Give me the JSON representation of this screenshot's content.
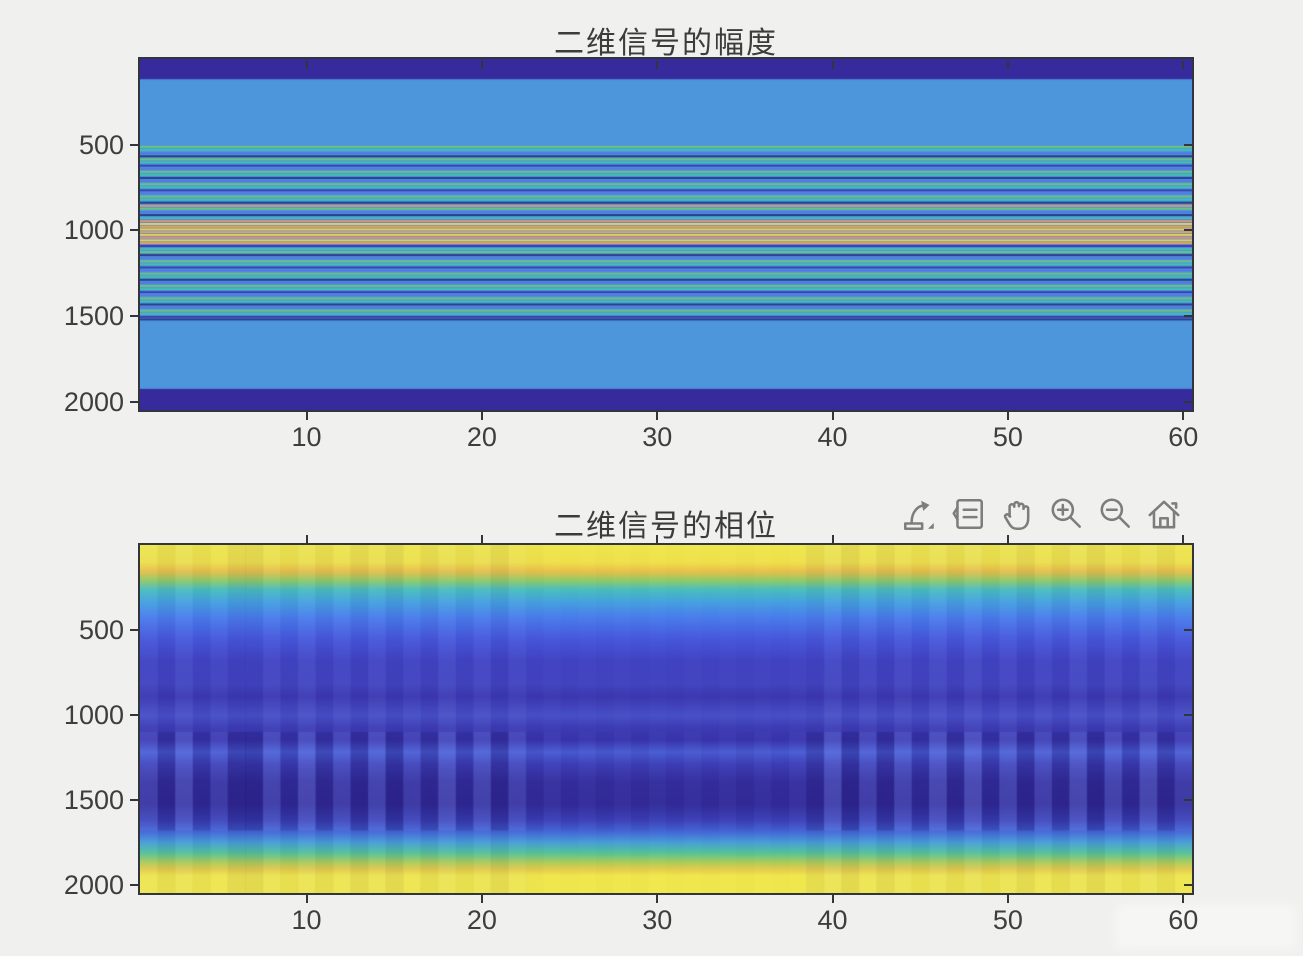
{
  "figure": {
    "background": "#F0F0EE",
    "axis_color": "#32353C",
    "tick_label_color": "#3E3E3E",
    "title_color": "#3C3C3C"
  },
  "toolbar": {
    "color": "#7D7D7D",
    "buttons": [
      {
        "name": "export",
        "icon": "export-icon"
      },
      {
        "name": "datatips",
        "icon": "datatips-icon"
      },
      {
        "name": "pan",
        "icon": "pan-icon"
      },
      {
        "name": "zoom-in",
        "icon": "zoom-in-icon"
      },
      {
        "name": "zoom-out",
        "icon": "zoom-out-icon"
      },
      {
        "name": "restore-view",
        "icon": "home-icon"
      }
    ]
  },
  "chart_data": [
    {
      "type": "heatmap",
      "subtype": "horizontal-bands",
      "title": "二维信号的幅度",
      "xlabel": "",
      "ylabel": "",
      "x_range": [
        1,
        60
      ],
      "y_range": [
        1,
        2048
      ],
      "x_ticks": [
        10,
        20,
        30,
        40,
        50,
        60
      ],
      "x_tick_labels": [
        "10",
        "20",
        "30",
        "40",
        "50",
        "60"
      ],
      "y_ticks": [
        500,
        1000,
        1500,
        2000
      ],
      "y_tick_labels": [
        "500",
        "1000",
        "1500",
        "2000"
      ],
      "colormap": "parula",
      "background_value_color": "#4D96DB",
      "bands": [
        [
          1,
          2048,
          "#4D96DB"
        ],
        [
          1,
          118,
          "#362A9D"
        ],
        [
          1926,
          123,
          "#362A9D"
        ],
        [
          930,
          162,
          "#5A7BE4"
        ],
        [
          508,
          11,
          "#6FC578"
        ],
        [
          526,
          11,
          "#41C0B3"
        ],
        [
          545,
          11,
          "#5577E8"
        ],
        [
          563,
          11,
          "#2A3584"
        ],
        [
          581,
          11,
          "#6FC578"
        ],
        [
          599,
          11,
          "#41C0B3"
        ],
        [
          618,
          11,
          "#3D35B0"
        ],
        [
          636,
          11,
          "#5577E8"
        ],
        [
          654,
          11,
          "#6FC578"
        ],
        [
          672,
          11,
          "#41C0B3"
        ],
        [
          690,
          11,
          "#2A3584"
        ],
        [
          708,
          11,
          "#5577E8"
        ],
        [
          726,
          11,
          "#6FC578"
        ],
        [
          744,
          11,
          "#41C0B3"
        ],
        [
          762,
          11,
          "#3D35B0"
        ],
        [
          780,
          11,
          "#5577E8"
        ],
        [
          798,
          11,
          "#6FC578"
        ],
        [
          816,
          11,
          "#41C0B3"
        ],
        [
          834,
          11,
          "#2A3584"
        ],
        [
          852,
          11,
          "#DE9A70"
        ],
        [
          870,
          11,
          "#6FC578"
        ],
        [
          888,
          11,
          "#5577E8"
        ],
        [
          906,
          11,
          "#2A3584"
        ],
        [
          924,
          11,
          "#41C0B3"
        ],
        [
          941,
          11,
          "#DE9A70"
        ],
        [
          958,
          11,
          "#EDDC4E"
        ],
        [
          974,
          11,
          "#E9AE4C"
        ],
        [
          990,
          11,
          "#EDDC4E"
        ],
        [
          1006,
          11,
          "#E9AE4C"
        ],
        [
          1022,
          11,
          "#EDDC4E"
        ],
        [
          1038,
          11,
          "#DE9A70"
        ],
        [
          1054,
          11,
          "#EDDC4E"
        ],
        [
          1070,
          11,
          "#E9AE4C"
        ],
        [
          1087,
          11,
          "#3D35B0"
        ],
        [
          1104,
          11,
          "#41C0B3"
        ],
        [
          1122,
          11,
          "#6FC578"
        ],
        [
          1140,
          11,
          "#2A3584"
        ],
        [
          1158,
          11,
          "#5577E8"
        ],
        [
          1176,
          11,
          "#6FC578"
        ],
        [
          1194,
          11,
          "#41C0B3"
        ],
        [
          1212,
          11,
          "#3D35B0"
        ],
        [
          1230,
          11,
          "#5577E8"
        ],
        [
          1248,
          11,
          "#6FC578"
        ],
        [
          1266,
          11,
          "#41C0B3"
        ],
        [
          1284,
          11,
          "#2A3584"
        ],
        [
          1302,
          11,
          "#5577E8"
        ],
        [
          1320,
          11,
          "#6FC578"
        ],
        [
          1338,
          11,
          "#41C0B3"
        ],
        [
          1356,
          11,
          "#3D35B0"
        ],
        [
          1374,
          11,
          "#5577E8"
        ],
        [
          1392,
          11,
          "#6FC578"
        ],
        [
          1410,
          11,
          "#41C0B3"
        ],
        [
          1428,
          11,
          "#2A3584"
        ],
        [
          1446,
          11,
          "#5577E8"
        ],
        [
          1464,
          11,
          "#6FC578"
        ],
        [
          1482,
          11,
          "#41C0B3"
        ],
        [
          1500,
          11,
          "#3D35B0"
        ],
        [
          1515,
          11,
          "#2A3584"
        ]
      ]
    },
    {
      "type": "heatmap",
      "subtype": "vertical-gradient",
      "title": "二维信号的相位",
      "xlabel": "",
      "ylabel": "",
      "x_range": [
        1,
        60
      ],
      "y_range": [
        1,
        2048
      ],
      "x_ticks": [
        10,
        20,
        30,
        40,
        50,
        60
      ],
      "x_tick_labels": [
        "10",
        "20",
        "30",
        "40",
        "50",
        "60"
      ],
      "y_ticks": [
        500,
        1000,
        1500,
        2000
      ],
      "y_tick_labels": [
        "500",
        "1000",
        "1500",
        "2000"
      ],
      "colormap": "parula",
      "n_columns": 60,
      "gradient_stops": [
        [
          0.0,
          "#F1E84D"
        ],
        [
          0.05,
          "#F0E24B"
        ],
        [
          0.075,
          "#ECC148"
        ],
        [
          0.1,
          "#98CC63"
        ],
        [
          0.128,
          "#4AC0BC"
        ],
        [
          0.163,
          "#45A3E0"
        ],
        [
          0.21,
          "#4A7CEC"
        ],
        [
          0.27,
          "#4758DC"
        ],
        [
          0.335,
          "#4143C2"
        ],
        [
          0.4,
          "#4244C0"
        ],
        [
          0.435,
          "#3C38B0"
        ],
        [
          0.49,
          "#4850C8"
        ],
        [
          0.525,
          "#3E3CB4"
        ],
        [
          0.56,
          "#3B36AE"
        ],
        [
          0.595,
          "#4A5DD4"
        ],
        [
          0.63,
          "#3F40B8"
        ],
        [
          0.68,
          "#362F9F"
        ],
        [
          0.745,
          "#342C9A"
        ],
        [
          0.79,
          "#3C40B6"
        ],
        [
          0.825,
          "#4568D8"
        ],
        [
          0.855,
          "#47A0D6"
        ],
        [
          0.885,
          "#55C498"
        ],
        [
          0.91,
          "#A8CD5C"
        ],
        [
          0.932,
          "#E6CD4A"
        ],
        [
          0.95,
          "#F1E84D"
        ],
        [
          1.0,
          "#F1E84D"
        ]
      ],
      "blotch_rows": [
        1100,
        1680
      ],
      "column_variation": [
        -0.5,
        0.6,
        -0.7,
        0.5,
        -0.4,
        0.7,
        0.8,
        -0.6,
        0.5,
        -0.7,
        0.6,
        -0.5,
        0.7,
        -0.6,
        0.8,
        -0.4,
        0.6,
        -0.7,
        0.5,
        -0.6,
        0.7,
        -0.5,
        0.2,
        -0.15,
        0.1,
        -0.12,
        0.15,
        -0.1,
        0.12,
        -0.08,
        0.1,
        -0.12,
        0.08,
        -0.1,
        0.15,
        -0.12,
        0.1,
        -0.15,
        0.6,
        -0.7,
        0.8,
        -0.5,
        0.7,
        -0.6,
        0.5,
        -0.7,
        0.6,
        -0.8,
        0.5,
        -0.6,
        0.7,
        -0.5,
        0.6,
        -0.7,
        0.8,
        -0.6,
        0.5,
        -0.7,
        0.6,
        -0.4
      ]
    }
  ]
}
